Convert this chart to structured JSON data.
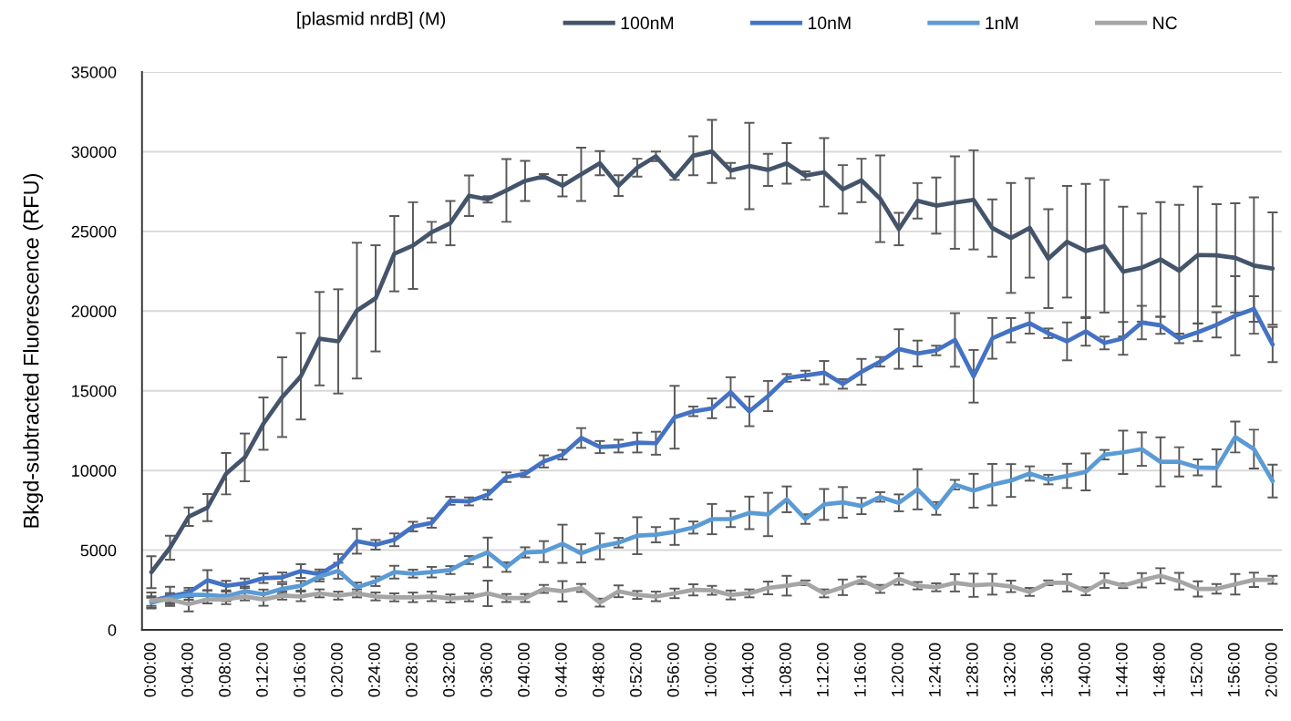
{
  "chart_data": {
    "type": "line",
    "legend_title": "[plasmid nrdB] (M)",
    "ylabel": "Bkgd-subtracted Fluorescence (RFU)",
    "categories": [
      "0:00:00",
      null,
      "0:04:00",
      null,
      "0:08:00",
      null,
      "0:12:00",
      null,
      "0:16:00",
      null,
      "0:20:00",
      null,
      "0:24:00",
      null,
      "0:28:00",
      null,
      "0:32:00",
      null,
      "0:36:00",
      null,
      "0:40:00",
      null,
      "0:44:00",
      null,
      "0:48:00",
      null,
      "0:52:00",
      null,
      "0:56:00",
      null,
      "1:00:00",
      null,
      "1:04:00",
      null,
      "1:08:00",
      null,
      "1:12:00",
      null,
      "1:16:00",
      null,
      "1:20:00",
      null,
      "1:24:00",
      null,
      "1:28:00",
      null,
      "1:32:00",
      null,
      "1:36:00",
      null,
      "1:40:00",
      null,
      "1:44:00",
      null,
      "1:48:00",
      null,
      "1:52:00",
      null,
      "1:56:00",
      null,
      "2:00:00"
    ],
    "series": [
      {
        "name": "100nM",
        "color": "#44546a",
        "values": [
          3620,
          5160,
          7100,
          7670,
          9800,
          10820,
          12940,
          14600,
          15910,
          18270,
          18100,
          20030,
          20800,
          23600,
          24110,
          24950,
          25520,
          27240,
          27010,
          27570,
          28170,
          28450,
          27870,
          28580,
          29280,
          27870,
          29000,
          29710,
          28380,
          29750,
          30020,
          28820,
          29100,
          28860,
          29270,
          28500,
          28710,
          27640,
          28200,
          27050,
          25150,
          26920,
          26620,
          26810,
          26980,
          25210,
          24590,
          25220,
          23290,
          24350,
          23770,
          24070,
          22480,
          22730,
          23240,
          22540,
          23520,
          23500,
          23340,
          22860,
          22670
        ],
        "errors": [
          1000,
          750,
          580,
          850,
          1300,
          1500,
          1640,
          2500,
          2710,
          2930,
          3270,
          4260,
          3330,
          2360,
          2720,
          650,
          1390,
          1270,
          200,
          1970,
          1260,
          150,
          670,
          1670,
          760,
          650,
          560,
          300,
          150,
          1220,
          1980,
          480,
          2710,
          1010,
          1270,
          270,
          2150,
          1520,
          1360,
          2720,
          1020,
          1110,
          1760,
          2900,
          3110,
          1800,
          3450,
          3120,
          3100,
          3500,
          4210,
          4160,
          4070,
          3390,
          3600,
          4130,
          4290,
          3210,
          3430,
          4280,
          3520
        ]
      },
      {
        "name": "10nM",
        "color": "#4472c4",
        "values": [
          1810,
          2100,
          2340,
          3110,
          2770,
          2920,
          3240,
          3300,
          3690,
          3490,
          4190,
          5560,
          5340,
          5650,
          6480,
          6710,
          8100,
          8060,
          8480,
          9580,
          9790,
          10570,
          10990,
          12040,
          11470,
          11530,
          11750,
          11710,
          13340,
          13710,
          13900,
          14910,
          13710,
          14670,
          15810,
          15960,
          16140,
          15430,
          16190,
          16820,
          17620,
          17340,
          17530,
          18190,
          15910,
          18290,
          18800,
          19240,
          18610,
          18100,
          18730,
          18000,
          18290,
          19280,
          19110,
          18290,
          18670,
          19140,
          19710,
          20130,
          17900
        ],
        "errors": [
          300,
          600,
          300,
          640,
          300,
          300,
          300,
          300,
          430,
          300,
          570,
          780,
          300,
          400,
          300,
          300,
          250,
          250,
          300,
          300,
          200,
          380,
          300,
          620,
          380,
          400,
          620,
          720,
          1970,
          300,
          620,
          940,
          930,
          950,
          240,
          300,
          730,
          300,
          810,
          300,
          1240,
          810,
          300,
          1680,
          1650,
          1280,
          760,
          650,
          300,
          1190,
          900,
          400,
          1030,
          1050,
          540,
          300,
          550,
          790,
          2480,
          800,
          1100
        ]
      },
      {
        "name": "1nM",
        "color": "#5b9bd5",
        "values": [
          1710,
          2000,
          2190,
          2190,
          2100,
          2420,
          2230,
          2570,
          2770,
          3340,
          3710,
          2670,
          3050,
          3620,
          3530,
          3620,
          3750,
          4380,
          4860,
          3940,
          4860,
          4910,
          5400,
          4800,
          5240,
          5470,
          5910,
          5970,
          6150,
          6420,
          6950,
          6950,
          7340,
          7240,
          8190,
          6950,
          7870,
          8000,
          7770,
          8340,
          7970,
          8820,
          7620,
          9110,
          8730,
          9110,
          9370,
          9810,
          9430,
          9660,
          9910,
          10990,
          11140,
          11340,
          10540,
          10540,
          10190,
          10160,
          12100,
          11340,
          9340
        ],
        "errors": [
          300,
          300,
          300,
          300,
          300,
          300,
          300,
          300,
          300,
          300,
          500,
          300,
          300,
          400,
          250,
          330,
          250,
          250,
          930,
          300,
          320,
          660,
          1200,
          570,
          810,
          300,
          1160,
          480,
          820,
          380,
          950,
          500,
          1020,
          1360,
          810,
          300,
          970,
          960,
          510,
          300,
          530,
          1260,
          400,
          300,
          1060,
          1300,
          1030,
          450,
          300,
          760,
          1160,
          300,
          1360,
          1050,
          1540,
          920,
          500,
          1170,
          970,
          1220,
          1030
        ]
      },
      {
        "name": "NC",
        "color": "#a5a5a5",
        "values": [
          1850,
          1910,
          1620,
          1910,
          1910,
          2100,
          1910,
          2150,
          2100,
          2290,
          2150,
          2290,
          2100,
          2040,
          2040,
          2100,
          1970,
          2040,
          2290,
          2000,
          2000,
          2570,
          2420,
          2630,
          1710,
          2420,
          2190,
          2100,
          2290,
          2510,
          2480,
          2190,
          2290,
          2630,
          2770,
          2950,
          2290,
          2670,
          3110,
          2570,
          3190,
          2770,
          2670,
          2950,
          2800,
          2860,
          2730,
          2380,
          2950,
          2950,
          2420,
          3090,
          2770,
          3110,
          3390,
          3050,
          2570,
          2570,
          2860,
          3140,
          3140
        ],
        "errors": [
          500,
          300,
          460,
          250,
          300,
          250,
          400,
          250,
          300,
          250,
          250,
          250,
          250,
          250,
          300,
          300,
          250,
          250,
          800,
          250,
          250,
          250,
          640,
          250,
          250,
          370,
          250,
          300,
          300,
          350,
          280,
          280,
          250,
          400,
          620,
          150,
          250,
          490,
          230,
          250,
          360,
          230,
          250,
          540,
          730,
          650,
          360,
          250,
          150,
          540,
          250,
          460,
          150,
          450,
          480,
          520,
          480,
          300,
          640,
          450,
          250
        ]
      }
    ],
    "ylim": [
      0,
      35000
    ],
    "yticks": [
      0,
      5000,
      10000,
      15000,
      20000,
      25000,
      30000,
      35000
    ],
    "grid": "y",
    "legend": "top"
  }
}
